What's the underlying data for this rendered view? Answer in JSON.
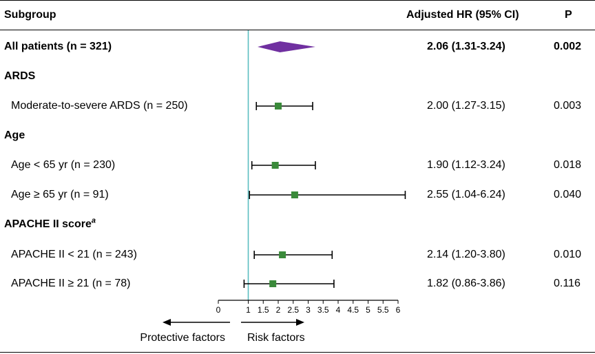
{
  "header": {
    "subgroup": "Subgroup",
    "hr": "Adjusted HR (95% CI)",
    "p": "P"
  },
  "rows": [
    {
      "kind": "overall",
      "label": "All patients (n = 321)",
      "hr_text": "2.06 (1.31-3.24)",
      "p": "0.002"
    },
    {
      "kind": "group",
      "label": "ARDS"
    },
    {
      "kind": "item",
      "label": "Moderate-to-severe ARDS (n = 250)",
      "hr_text": "2.00 (1.27-3.15)",
      "p": "0.003"
    },
    {
      "kind": "group",
      "label": "Age"
    },
    {
      "kind": "item",
      "label": "Age < 65 yr (n = 230)",
      "hr_text": "1.90 (1.12-3.24)",
      "p": "0.018"
    },
    {
      "kind": "item",
      "label": "Age ≥ 65 yr (n = 91)",
      "hr_text": "2.55 (1.04-6.24)",
      "p": "0.040"
    },
    {
      "kind": "group",
      "label": "APACHE II score",
      "sup": "a"
    },
    {
      "kind": "item",
      "label": "APACHE II < 21 (n = 243)",
      "hr_text": "2.14 (1.20-3.80)",
      "p": "0.010"
    },
    {
      "kind": "item",
      "label": "APACHE II ≥ 21 (n = 78)",
      "hr_text": "1.82 (0.86-3.86)",
      "p": "0.116"
    }
  ],
  "chart_data": {
    "type": "forest",
    "x_ticks": [
      "0",
      "1",
      "1.5",
      "2",
      "2.5",
      "3",
      "3.5",
      "4",
      "4.5",
      "5",
      "5.5",
      "6"
    ],
    "xlim": [
      0,
      6
    ],
    "reference_line": 1,
    "left_caption": "Protective factors",
    "right_caption": "Risk factors",
    "colors": {
      "diamond": "#7030a0",
      "marker": "#3a8a3a",
      "reference": "#5bbdc0"
    },
    "series": [
      {
        "label": "All patients (n = 321)",
        "hr": 2.06,
        "ci": [
          1.31,
          3.24
        ],
        "marker": "diamond"
      },
      {
        "label": "Moderate-to-severe ARDS (n = 250)",
        "hr": 2.0,
        "ci": [
          1.27,
          3.15
        ],
        "marker": "square"
      },
      {
        "label": "Age < 65 yr (n = 230)",
        "hr": 1.9,
        "ci": [
          1.12,
          3.24
        ],
        "marker": "square"
      },
      {
        "label": "Age ≥ 65 yr (n = 91)",
        "hr": 2.55,
        "ci": [
          1.04,
          6.24
        ],
        "marker": "square"
      },
      {
        "label": "APACHE II < 21 (n = 243)",
        "hr": 2.14,
        "ci": [
          1.2,
          3.8
        ],
        "marker": "square"
      },
      {
        "label": "APACHE II ≥ 21 (n = 78)",
        "hr": 1.82,
        "ci": [
          0.86,
          3.86
        ],
        "marker": "square"
      }
    ]
  }
}
